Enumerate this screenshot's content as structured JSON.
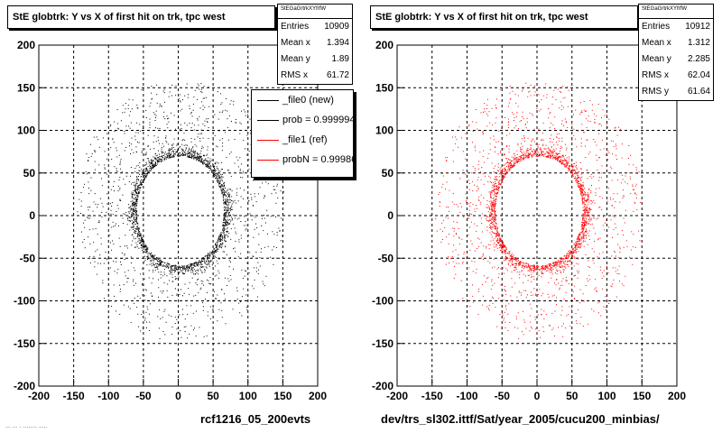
{
  "chart_data": [
    {
      "type": "scatter",
      "title": "StE globtrk: Y vs X of first hit on trk, tpc west",
      "xlabel": "rcf1216_05_200evts",
      "ylabel": "",
      "xlim": [
        -200,
        200
      ],
      "ylim": [
        -200,
        200
      ],
      "xticks": [
        -200,
        -150,
        -100,
        -50,
        0,
        50,
        100,
        150,
        200
      ],
      "yticks": [
        -200,
        -150,
        -100,
        -50,
        0,
        50,
        100,
        150,
        200
      ],
      "grid": true,
      "color": "#000000",
      "stats": {
        "name": "StEGaGrtrkXYfrfW",
        "rows": [
          {
            "label": "Entries",
            "value": "10909"
          },
          {
            "label": "Mean x",
            "value": "1.394"
          },
          {
            "label": "Mean y",
            "value": "1.89"
          },
          {
            "label": "RMS x",
            "value": "61.72"
          }
        ]
      },
      "legend": {
        "placement": "top-right",
        "entries": [
          {
            "label": "_file0 (new)",
            "color": "#000000"
          },
          {
            "label": "prob = 0.999994",
            "color": "#000000"
          },
          {
            "label": "_file1 (ref)",
            "color": "#ff0000"
          },
          {
            "label": "probN = 0.99986",
            "color": "#ff0000"
          }
        ]
      },
      "distribution": {
        "ring_x": [
          -60,
          65
        ],
        "ring_y": [
          -58,
          70
        ],
        "total_entries": 10909
      }
    },
    {
      "type": "scatter",
      "title": "StE globtrk: Y vs X of first hit on trk, tpc west",
      "xlabel": "dev/trs_sl302.ittf/Sat/year_2005/cucu200_minbias/",
      "ylabel": "",
      "xlim": [
        -200,
        200
      ],
      "ylim": [
        -200,
        200
      ],
      "xticks": [
        -200,
        -150,
        -100,
        -50,
        0,
        50,
        100,
        150,
        200
      ],
      "yticks": [
        -200,
        -150,
        -100,
        -50,
        0,
        50,
        100,
        150,
        200
      ],
      "grid": true,
      "color": "#ff0000",
      "stats": {
        "name": "StEGaGrtrkXYfrfW",
        "rows": [
          {
            "label": "Entries",
            "value": "10912"
          },
          {
            "label": "Mean x",
            "value": "1.312"
          },
          {
            "label": "Mean y",
            "value": "2.285"
          },
          {
            "label": "RMS x",
            "value": "62.04"
          },
          {
            "label": "RMS y",
            "value": "61.64"
          }
        ]
      },
      "distribution": {
        "ring_x": [
          -60,
          65
        ],
        "ring_y": [
          -58,
          70
        ],
        "total_entries": 10912
      }
    }
  ],
  "footer_text": "... ... . ........ ....."
}
